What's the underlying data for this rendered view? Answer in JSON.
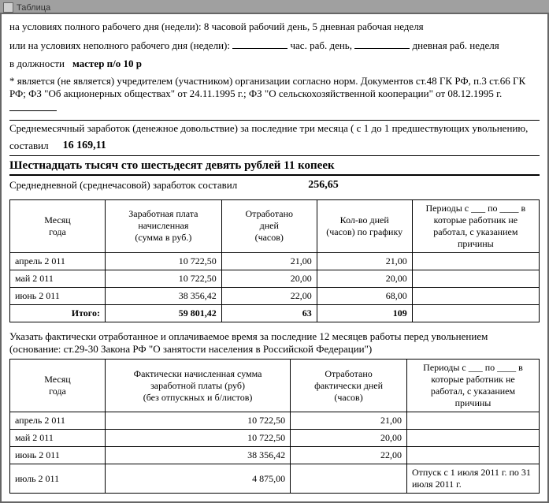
{
  "window_title": "Таблица",
  "intro": {
    "line1_prefix": "на условиях полного рабочего дня (недели):",
    "line1_value": "8  часовой рабочий день, 5 дневная рабочая неделя",
    "line2_prefix": "или на условиях неполного рабочего дня (недели):",
    "line2_mid1": "час. раб. день,",
    "line2_mid2": "дневная раб. неделя",
    "position_label": "в должности",
    "position_value": "мастер п/о 10 р",
    "note": "* является (не является) учредителем (участником) организации согласно норм. Документов ст.48 ГК РФ, п.3 ст.66 ГК РФ; ФЗ \"Об акционерных обществах\" от 24.11.1995 г.;   ФЗ \"О сельскохозяйственной кооперации\" от 08.12.1995 г.",
    "avg_month_line": "Среднемесячный заработок (денежное довольствие) за последние три месяца ( с 1 до 1 предшествующих увольнению,",
    "amount_label": "составил",
    "amount_value": "16 169,11",
    "amount_words": "Шестнадцать тысяч сто шестьдесят девять рублей 11 копеек",
    "avg_day_label": "Среднедневной (среднечасовой) заработок составил",
    "avg_day_value": "256,65"
  },
  "table1": {
    "headers": {
      "c1": "Месяц\nгода",
      "c2": "Заработная плата\nначисленная\n(сумма в руб.)",
      "c3": "Отработано\nдней\n(часов)",
      "c4": "Кол-во дней\n(часов) по графику",
      "c5": "Периоды с ___ по ____ в\nкоторые работник не\nработал, с указанием\nпричины"
    },
    "widths": [
      "18%",
      "22%",
      "18%",
      "18%",
      "24%"
    ],
    "rows": [
      {
        "c1": "апрель 2 011",
        "c2": "10 722,50",
        "c3": "21,00",
        "c4": "21,00",
        "c5": ""
      },
      {
        "c1": "май 2 011",
        "c2": "10 722,50",
        "c3": "20,00",
        "c4": "20,00",
        "c5": ""
      },
      {
        "c1": "июнь 2 011",
        "c2": "38 356,42",
        "c3": "22,00",
        "c4": "68,00",
        "c5": ""
      }
    ],
    "total": {
      "label": "Итого:",
      "c2": "59 801,42",
      "c3": "63",
      "c4": "109",
      "c5": ""
    }
  },
  "section2": {
    "line1": "Указать фактически отработанное и оплачиваемое время за последние 12 месяцев работы перед увольнением",
    "line2": "(основание: ст.29-30 Закона РФ \"О занятости населения в Российской Федерации\")"
  },
  "table2": {
    "headers": {
      "c1": "Месяц\nгода",
      "c2": "Фактически начисленная сумма\nзаработной платы (руб)\n(без отпускных и б/листов)",
      "c3": "Отработано\nфактически дней\n(часов)",
      "c4": "Периоды с ___ по ____ в\nкоторые работник не\nработал, с указанием\nпричины"
    },
    "widths": [
      "18%",
      "35%",
      "22%",
      "25%"
    ],
    "rows": [
      {
        "c1": "апрель 2 011",
        "c2": "10 722,50",
        "c3": "21,00",
        "c4": ""
      },
      {
        "c1": "май 2 011",
        "c2": "10 722,50",
        "c3": "20,00",
        "c4": ""
      },
      {
        "c1": "июнь 2 011",
        "c2": "38 356,42",
        "c3": "22,00",
        "c4": ""
      },
      {
        "c1": "июль 2 011",
        "c2": "4 875,00",
        "c3": "",
        "c4": "Отпуск с 1 июля 2011 г. по 31 июля 2011 г."
      }
    ]
  }
}
